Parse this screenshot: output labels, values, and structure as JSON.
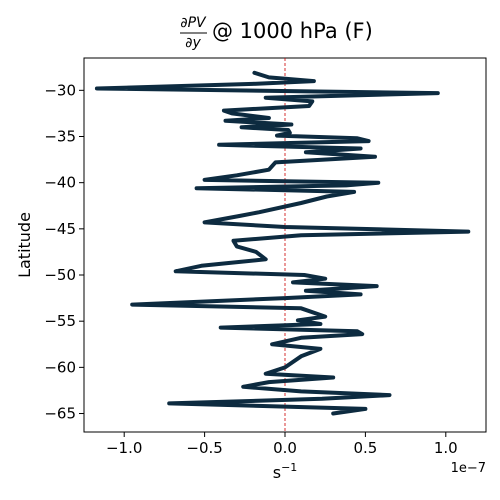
{
  "chart_data": {
    "type": "line",
    "title": {
      "numerator": "∂PV",
      "denominator": "∂y",
      "rest": " @ 1000 hPa (F)"
    },
    "xlabel": {
      "base": "s",
      "sup": "−1"
    },
    "ylabel": "Latitude",
    "x_offset_label": "1e−7",
    "xlim": [
      -1.25,
      1.25
    ],
    "ylim": [
      -67.0,
      -26.5
    ],
    "x_ticks": [
      -1.0,
      -0.5,
      0.0,
      0.5,
      1.0
    ],
    "x_tick_labels": [
      "−1.0",
      "−0.5",
      "0.0",
      "0.5",
      "1.0"
    ],
    "y_ticks": [
      -30,
      -35,
      -40,
      -45,
      -50,
      -55,
      -60,
      -65
    ],
    "y_tick_labels": [
      "−30",
      "−35",
      "−40",
      "−45",
      "−50",
      "−55",
      "−60",
      "−65"
    ],
    "zero_line": {
      "x": 0,
      "color": "#cc0000",
      "style": "dashed"
    },
    "series": [
      {
        "color": "#0d2b40",
        "points": [
          [
            -0.19,
            -28.1
          ],
          [
            -0.1,
            -28.6
          ],
          [
            0.18,
            -29.0
          ],
          [
            -0.2,
            -29.3
          ],
          [
            -1.17,
            -29.8
          ],
          [
            0.95,
            -30.3
          ],
          [
            -0.12,
            -30.8
          ],
          [
            0.17,
            -31.2
          ],
          [
            0.15,
            -31.7
          ],
          [
            -0.38,
            -32.2
          ],
          [
            -0.33,
            -32.5
          ],
          [
            -0.1,
            -33.0
          ],
          [
            -0.37,
            -33.3
          ],
          [
            0.04,
            -33.7
          ],
          [
            -0.27,
            -34.0
          ],
          [
            0.02,
            -34.3
          ],
          [
            0.03,
            -34.6
          ],
          [
            -0.05,
            -34.9
          ],
          [
            0.45,
            -35.2
          ],
          [
            0.52,
            -35.5
          ],
          [
            -0.41,
            -35.9
          ],
          [
            0.47,
            -36.3
          ],
          [
            0.13,
            -36.7
          ],
          [
            0.56,
            -37.2
          ],
          [
            -0.06,
            -37.8
          ],
          [
            -0.1,
            -38.6
          ],
          [
            -0.3,
            -39.2
          ],
          [
            -0.5,
            -39.7
          ],
          [
            0.58,
            -40.0
          ],
          [
            0.38,
            -40.3
          ],
          [
            -0.55,
            -40.6
          ],
          [
            0.43,
            -41.0
          ],
          [
            0.26,
            -41.5
          ],
          [
            0.1,
            -42.2
          ],
          [
            -0.16,
            -43.2
          ],
          [
            -0.28,
            -43.6
          ],
          [
            -0.5,
            -44.3
          ],
          [
            0.0,
            -44.8
          ],
          [
            1.14,
            -45.3
          ],
          [
            0.1,
            -45.7
          ],
          [
            -0.32,
            -46.3
          ],
          [
            -0.3,
            -46.9
          ],
          [
            -0.18,
            -47.5
          ],
          [
            -0.12,
            -48.3
          ],
          [
            -0.35,
            -48.7
          ],
          [
            -0.52,
            -49.0
          ],
          [
            -0.68,
            -49.6
          ],
          [
            0.12,
            -50.0
          ],
          [
            0.25,
            -50.4
          ],
          [
            0.05,
            -50.8
          ],
          [
            0.57,
            -51.2
          ],
          [
            0.13,
            -51.7
          ],
          [
            0.47,
            -52.1
          ],
          [
            0.0,
            -52.5
          ],
          [
            -0.95,
            -53.2
          ],
          [
            0.1,
            -53.6
          ],
          [
            0.25,
            -54.5
          ],
          [
            0.08,
            -54.9
          ],
          [
            0.22,
            -55.3
          ],
          [
            -0.4,
            -55.7
          ],
          [
            0.45,
            -56.1
          ],
          [
            0.48,
            -56.4
          ],
          [
            0.1,
            -56.8
          ],
          [
            -0.08,
            -57.5
          ],
          [
            0.22,
            -58.0
          ],
          [
            0.1,
            -58.8
          ],
          [
            0.0,
            -60.0
          ],
          [
            -0.12,
            -60.7
          ],
          [
            0.3,
            -61.1
          ],
          [
            -0.1,
            -61.6
          ],
          [
            -0.26,
            -62.1
          ],
          [
            0.1,
            -62.6
          ],
          [
            0.65,
            -63.0
          ],
          [
            0.23,
            -63.4
          ],
          [
            -0.72,
            -63.9
          ],
          [
            0.5,
            -64.5
          ],
          [
            0.3,
            -65.0
          ]
        ]
      }
    ]
  }
}
